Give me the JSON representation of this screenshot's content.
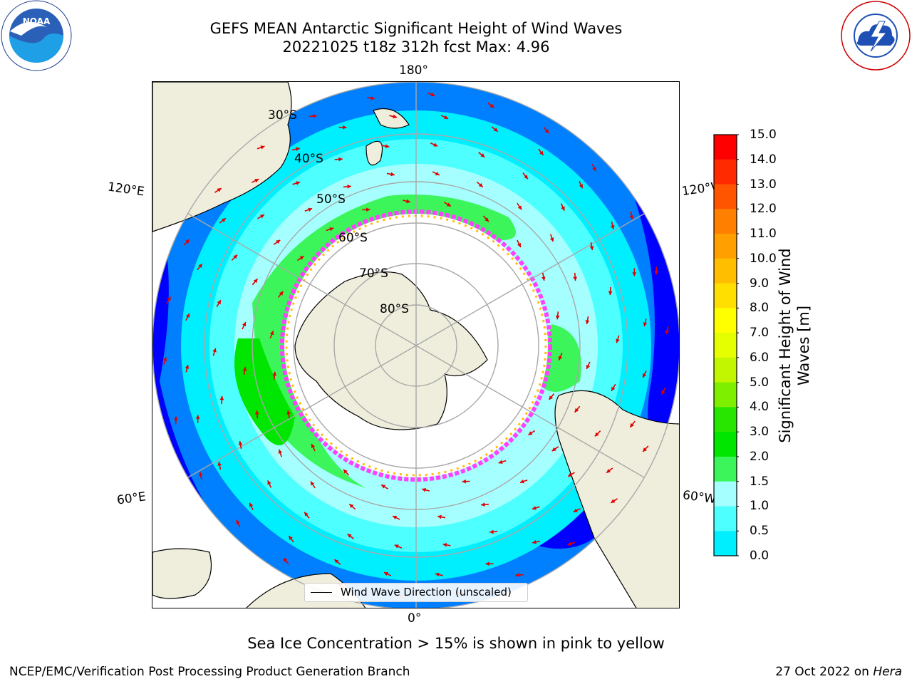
{
  "header": {
    "title_line1": "GEFS MEAN Antarctic Significant Height of Wind Waves",
    "title_line2": "20221025 t18z 312h fcst   Max: 4.96"
  },
  "logos": {
    "left": "NOAA",
    "left_ring": "NATIONAL OCEANIC AND ATMOSPHERIC ADMINISTRATION · U.S. DEPARTMENT OF COMMERCE",
    "right_ring": "NATIONAL WEATHER SERVICE"
  },
  "map": {
    "longitude_labels": {
      "top": "180°",
      "bottom": "0°",
      "upper_left": "120°E",
      "upper_right": "120°W",
      "lower_left": "60°E",
      "lower_right": "60°W"
    },
    "latitude_labels": [
      "30°S",
      "40°S",
      "50°S",
      "60°S",
      "70°S",
      "80°S"
    ],
    "legend_label": "Wind Wave Direction (unscaled)"
  },
  "colorbar": {
    "title": "Significant Height of Wind Waves [m]",
    "ticks": [
      "15.0",
      "14.0",
      "13.0",
      "12.0",
      "11.0",
      "10.0",
      "9.0",
      "8.0",
      "7.0",
      "6.0",
      "5.0",
      "4.0",
      "3.0",
      "2.0",
      "1.5",
      "1.0",
      "0.5",
      "0.0"
    ],
    "colors": [
      "#ff0000",
      "#ff2a00",
      "#ff5500",
      "#ff8000",
      "#ff9f00",
      "#ffbf00",
      "#ffdf00",
      "#ffff00",
      "#e5ff00",
      "#c2f500",
      "#7fef00",
      "#28e600",
      "#00e600",
      "#3cf55a",
      "#a6ffff",
      "#4dffff",
      "#00efff",
      "#0080ff",
      "#0000ff"
    ]
  },
  "sea_ice_note": "Sea Ice Concentration > 15% is shown in pink to yellow",
  "footer": {
    "left": "NCEP/EMC/Verification Post Processing Product Generation Branch",
    "right_prefix": "27 Oct 2022 on ",
    "right_host": "Hera"
  }
}
